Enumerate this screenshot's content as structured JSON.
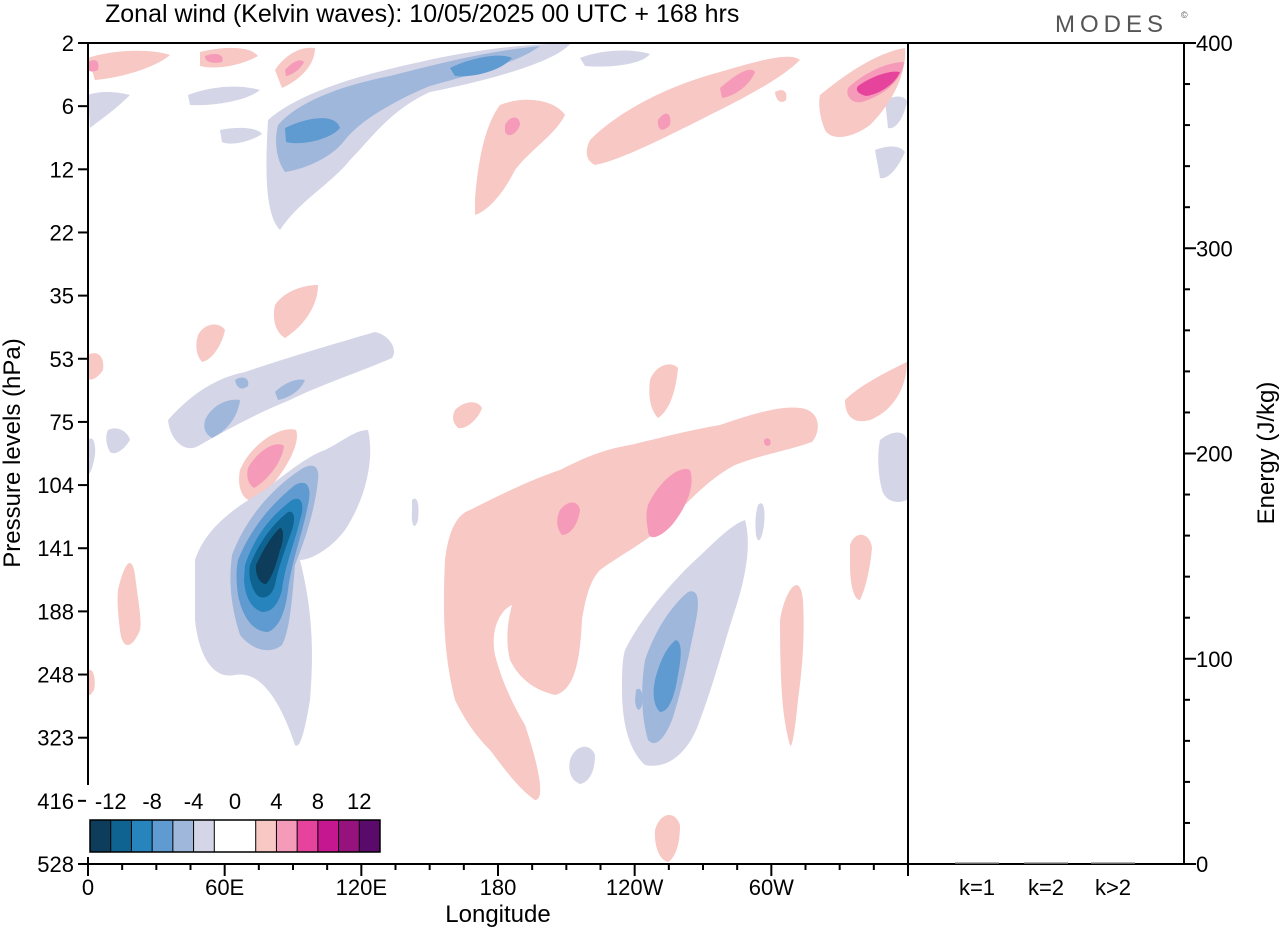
{
  "header": {
    "title": "Zonal wind (Kelvin waves):  10/05/2025  00 UTC  + 168 hrs",
    "brand": "MODES",
    "brand_mark": "©"
  },
  "chart_data": [
    {
      "type": "heatmap",
      "title": "Zonal wind (Kelvin waves):  10/05/2025  00 UTC  + 168 hrs",
      "xlabel": "Longitude",
      "ylabel": "Pressure levels (hPa)",
      "x_ticks": [
        "0",
        "60E",
        "120E",
        "180",
        "120W",
        "60W"
      ],
      "x_tick_values": [
        0,
        60,
        120,
        180,
        240,
        300
      ],
      "xlim": [
        0,
        360
      ],
      "y_ticks": [
        "2",
        "6",
        "12",
        "22",
        "35",
        "53",
        "75",
        "104",
        "141",
        "188",
        "248",
        "323",
        "416",
        "528"
      ],
      "y_scale": "level index, top = 2 hPa, bottom = 528 hPa",
      "colorbar": {
        "labels": [
          "-12",
          "-8",
          "-4",
          "0",
          "4",
          "8",
          "12"
        ],
        "bounds": [
          -14,
          -12,
          -10,
          -8,
          -6,
          -4,
          -2,
          2,
          4,
          6,
          8,
          10,
          12,
          14
        ],
        "colors": [
          "#0d3d5a",
          "#0f6391",
          "#2784bd",
          "#5f9bd0",
          "#a0b7dc",
          "#d4d6e8",
          "#ffffff",
          "#f7c8c4",
          "#f59ab9",
          "#e6449c",
          "#c5178f",
          "#96137d",
          "#5a0a6a"
        ]
      },
      "features": [
        {
          "sign": "negative",
          "peak": -13,
          "lon": 76,
          "p": 141
        },
        {
          "sign": "positive",
          "peak": 7,
          "lon": 70,
          "p": 104
        },
        {
          "sign": "negative",
          "peak": -8,
          "lon": 256,
          "p": 248
        },
        {
          "sign": "positive",
          "peak": 5,
          "lon": 250,
          "p": 130
        },
        {
          "sign": "negative",
          "peak": -7,
          "lon": 170,
          "p": 4
        },
        {
          "sign": "negative",
          "peak": -6,
          "lon": 95,
          "p": 9
        },
        {
          "sign": "positive",
          "peak": 9,
          "lon": 350,
          "p": 4
        },
        {
          "sign": "positive",
          "peak": 5,
          "lon": 290,
          "p": 5
        }
      ]
    },
    {
      "type": "bar",
      "categories": [
        "k=1",
        "k=2",
        "k>2"
      ],
      "values": [
        0.3,
        0.5,
        0.4
      ],
      "ylabel": "Energy (J/kg)",
      "ylim": [
        0,
        400
      ],
      "y_ticks": [
        "0",
        "100",
        "200",
        "300",
        "400"
      ]
    }
  ]
}
